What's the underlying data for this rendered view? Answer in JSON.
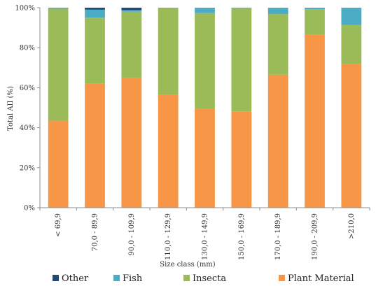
{
  "chart_data": {
    "type": "bar",
    "stacked": true,
    "percent": true,
    "title": "",
    "xlabel": "Size class (mm)",
    "ylabel": "Total AII (%)",
    "ylim": [
      0,
      100
    ],
    "yticks": [
      "0%",
      "20%",
      "40%",
      "60%",
      "80%",
      "100%"
    ],
    "categories": [
      "< 69,9",
      "70,0 - 89,9",
      "90,0 - 109,9",
      "110,0 - 129,9",
      "130,0 - 149,9",
      "150,0 - 169,9",
      "170,0 - 189,9",
      "190,0 - 209,9",
      ">210,0"
    ],
    "series": [
      {
        "name": "Plant Material",
        "color": "#f79646",
        "values": [
          43.5,
          62,
          65,
          56.5,
          49.5,
          48,
          66.5,
          86.5,
          72
        ]
      },
      {
        "name": "Insecta",
        "color": "#9bbb59",
        "values": [
          56,
          33,
          33,
          43.3,
          47.8,
          51.6,
          30.3,
          12.7,
          19.3
        ]
      },
      {
        "name": "Fish",
        "color": "#4bacc6",
        "values": [
          0.5,
          4,
          0.8,
          0.2,
          2.7,
          0.4,
          3.2,
          0.8,
          8.7
        ]
      },
      {
        "name": "Other",
        "color": "#1f497d",
        "values": [
          0,
          1,
          1.2,
          0,
          0,
          0,
          0,
          0,
          0
        ]
      }
    ],
    "legend_order": [
      "Other",
      "Fish",
      "Insecta",
      "Plant Material"
    ],
    "legend_position": "bottom",
    "grid": false
  }
}
